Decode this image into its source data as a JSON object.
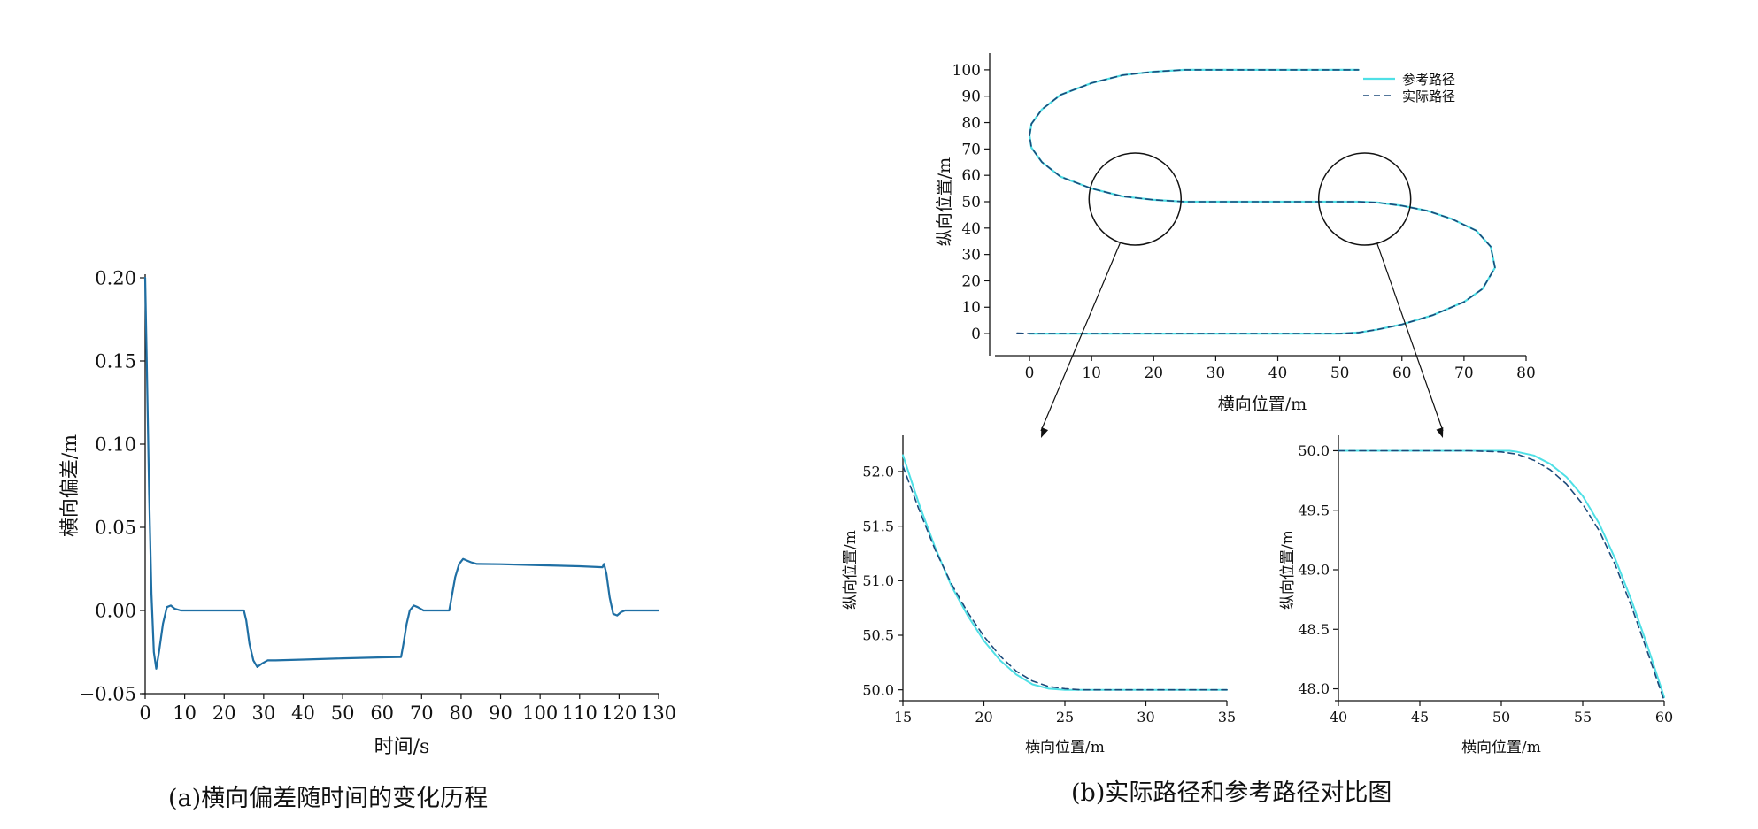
{
  "colors": {
    "lateral_line": "#1f6fa4",
    "reference": "#4fe0e6",
    "actual": "#1c4a7a",
    "axis": "#111111"
  },
  "captions": {
    "a": "(a)横向偏差随时间的变化历程",
    "b": "(b)实际路径和参考路径对比图"
  },
  "chart_data": [
    {
      "id": "a",
      "type": "line",
      "xlabel": "时间/s",
      "ylabel": "横向偏差/m",
      "xlim": [
        0,
        130
      ],
      "ylim": [
        -0.05,
        0.2
      ],
      "xticks": [
        0,
        10,
        20,
        30,
        40,
        50,
        60,
        70,
        80,
        90,
        100,
        110,
        120,
        130
      ],
      "yticks": [
        -0.05,
        0.0,
        0.05,
        0.1,
        0.15,
        0.2
      ],
      "ytick_labels": [
        "−0.05",
        "0.00",
        "0.05",
        "0.10",
        "0.15",
        "0.20"
      ],
      "grid": false,
      "series": [
        {
          "style": "solid",
          "x": [
            0,
            0.4,
            1.0,
            1.6,
            2.2,
            2.8,
            3.5,
            4.5,
            5.5,
            6.5,
            7.5,
            9.0,
            11,
            14,
            20,
            25,
            25.6,
            26.4,
            27.4,
            28.4,
            29.5,
            31,
            33,
            40,
            50,
            60,
            64.8,
            65.4,
            66.2,
            67.0,
            68.0,
            69.0,
            70.5,
            73,
            77,
            77.6,
            78.5,
            79.5,
            80.5,
            81.5,
            82.5,
            84,
            90,
            100,
            110,
            115.8,
            116.2,
            116.8,
            117.6,
            118.5,
            119.5,
            120.5,
            121.5,
            123,
            126,
            130
          ],
          "y": [
            0.2,
            0.15,
            0.07,
            0.01,
            -0.025,
            -0.035,
            -0.025,
            -0.008,
            0.002,
            0.003,
            0.001,
            0.0,
            0.0,
            0.0,
            0.0,
            0.0,
            -0.006,
            -0.02,
            -0.03,
            -0.034,
            -0.032,
            -0.03,
            -0.03,
            -0.0295,
            -0.0288,
            -0.0282,
            -0.028,
            -0.02,
            -0.008,
            0.0,
            0.003,
            0.002,
            0.0,
            0.0,
            0.0,
            0.008,
            0.02,
            0.028,
            0.031,
            0.03,
            0.029,
            0.028,
            0.0278,
            0.0272,
            0.0266,
            0.026,
            0.028,
            0.022,
            0.008,
            -0.002,
            -0.003,
            -0.001,
            0.0,
            0.0,
            0.0,
            0.0
          ]
        }
      ]
    },
    {
      "id": "b-main",
      "type": "line",
      "xlabel": "横向位置/m",
      "ylabel": "纵向位置/m",
      "xlim": [
        -5,
        80
      ],
      "ylim": [
        -5,
        105
      ],
      "xticks": [
        0,
        10,
        20,
        30,
        40,
        50,
        60,
        70,
        80
      ],
      "yticks": [
        0,
        10,
        20,
        30,
        40,
        50,
        60,
        70,
        80,
        90,
        100
      ],
      "grid": false,
      "legend_position": "top-right",
      "series": [
        {
          "name": "参考路径",
          "style": "solid",
          "x": [
            0,
            10,
            20,
            30,
            40,
            50,
            53,
            56,
            60,
            65,
            70,
            73,
            75,
            74.3,
            72,
            68,
            64,
            60,
            56,
            53,
            50,
            40,
            30,
            25,
            20,
            15,
            10,
            5,
            2,
            0.3,
            0,
            0.3,
            2,
            5,
            10,
            15,
            20,
            25,
            30,
            40,
            50,
            53
          ],
          "y": [
            0,
            0,
            0,
            0,
            0,
            0,
            0.4,
            1.5,
            3.5,
            7,
            12,
            17,
            25,
            33,
            39,
            43.5,
            46.6,
            48.5,
            49.7,
            50,
            50,
            50,
            50,
            50,
            50.7,
            52,
            55,
            59.5,
            65,
            70.5,
            75,
            79.5,
            85,
            90.5,
            95,
            98,
            99.3,
            100,
            100,
            100,
            100,
            100
          ]
        },
        {
          "name": "实际路径",
          "style": "dashed",
          "x": [
            -2,
            0,
            10,
            20,
            30,
            40,
            50,
            53,
            56,
            60,
            65,
            70,
            73,
            75,
            74.3,
            72,
            68,
            64,
            60,
            56,
            53,
            50,
            40,
            30,
            25,
            20,
            15,
            10,
            5,
            2,
            0.3,
            0,
            0.3,
            2,
            5,
            10,
            15,
            20,
            25,
            30,
            40,
            50,
            53
          ],
          "y": [
            0.2,
            0,
            0,
            0,
            0,
            0,
            0,
            0.4,
            1.5,
            3.5,
            7,
            12,
            17,
            25,
            33,
            39,
            43.5,
            46.6,
            48.5,
            49.7,
            50,
            50,
            50,
            50,
            50,
            50.7,
            52,
            55,
            59.5,
            65,
            70.5,
            75,
            79.5,
            85,
            90.5,
            95,
            98,
            99.3,
            100,
            100,
            100,
            100,
            100
          ]
        }
      ],
      "magnifier_circles": [
        {
          "center": [
            17,
            51
          ]
        },
        {
          "center": [
            54,
            51
          ]
        }
      ]
    },
    {
      "id": "b-zoom1",
      "type": "line",
      "xlabel": "横向位置/m",
      "ylabel": "纵向位置/m",
      "xlim": [
        15,
        35
      ],
      "ylim": [
        49.9,
        52.3
      ],
      "xticks": [
        15,
        20,
        25,
        30,
        35
      ],
      "yticks": [
        50.0,
        50.5,
        51.0,
        51.5,
        52.0
      ],
      "ytick_labels": [
        "50.0",
        "50.5",
        "51.0",
        "51.5",
        "52.0"
      ],
      "grid": false,
      "series": [
        {
          "style": "solid",
          "x": [
            15,
            16,
            17,
            18,
            19,
            20,
            21,
            22,
            23,
            24,
            25,
            26,
            28,
            30,
            32,
            35
          ],
          "y": [
            52.15,
            51.7,
            51.3,
            50.95,
            50.68,
            50.45,
            50.27,
            50.14,
            50.05,
            50.01,
            50.0,
            50.0,
            50.0,
            50.0,
            50.0,
            50.0
          ]
        },
        {
          "style": "dashed",
          "x": [
            15,
            16,
            17,
            18,
            19,
            20,
            21,
            22,
            23,
            24,
            25,
            26,
            28,
            30,
            32,
            35
          ],
          "y": [
            52.05,
            51.65,
            51.28,
            50.97,
            50.71,
            50.49,
            50.31,
            50.17,
            50.08,
            50.03,
            50.01,
            50.0,
            50.0,
            50.0,
            50.0,
            50.0
          ]
        }
      ]
    },
    {
      "id": "b-zoom2",
      "type": "line",
      "xlabel": "横向位置/m",
      "ylabel": "纵向位置/m",
      "xlim": [
        40,
        60
      ],
      "ylim": [
        47.9,
        50.1
      ],
      "xticks": [
        40,
        45,
        50,
        55,
        60
      ],
      "yticks": [
        48.0,
        48.5,
        49.0,
        49.5,
        50.0
      ],
      "ytick_labels": [
        "48.0",
        "48.5",
        "49.0",
        "49.5",
        "50.0"
      ],
      "grid": false,
      "series": [
        {
          "style": "solid",
          "x": [
            40,
            45,
            50,
            50.5,
            51,
            52,
            53,
            54,
            55,
            56,
            57,
            58,
            59,
            60
          ],
          "y": [
            50.0,
            50.0,
            50.0,
            50.0,
            49.99,
            49.96,
            49.89,
            49.78,
            49.62,
            49.39,
            49.09,
            48.74,
            48.35,
            47.93
          ]
        },
        {
          "style": "dashed",
          "x": [
            40,
            45,
            48,
            50,
            51,
            52,
            53,
            54,
            55,
            56,
            57,
            58,
            59,
            60
          ],
          "y": [
            50.0,
            50.0,
            50.0,
            49.99,
            49.97,
            49.92,
            49.84,
            49.72,
            49.55,
            49.33,
            49.04,
            48.69,
            48.3,
            47.9
          ]
        }
      ]
    }
  ]
}
